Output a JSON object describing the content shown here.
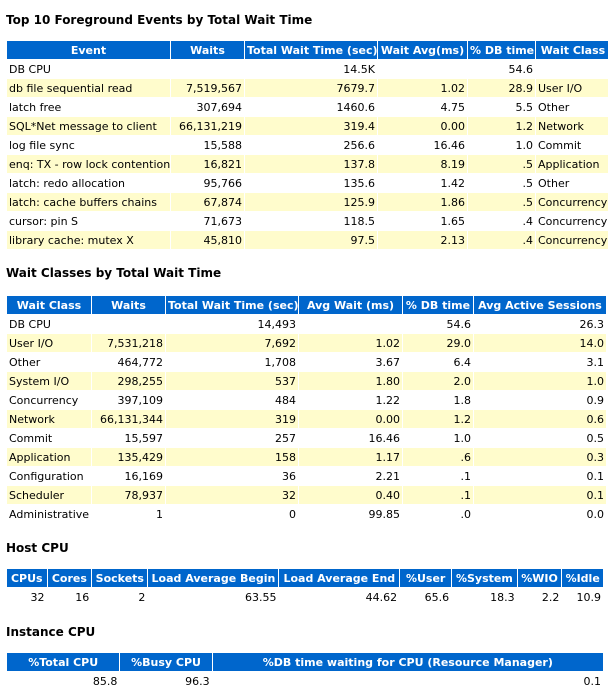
{
  "top_events": {
    "title": "Top 10 Foreground Events by Total Wait Time",
    "headers": [
      "Event",
      "Waits",
      "Total Wait Time (sec)",
      "Wait Avg(ms)",
      "% DB time",
      "Wait Class"
    ],
    "rows": [
      [
        "DB CPU",
        "",
        "14.5K",
        "",
        "54.6",
        ""
      ],
      [
        "db file sequential read",
        "7,519,567",
        "7679.7",
        "1.02",
        "28.9",
        "User I/O"
      ],
      [
        "latch free",
        "307,694",
        "1460.6",
        "4.75",
        "5.5",
        "Other"
      ],
      [
        "SQL*Net message to client",
        "66,131,219",
        "319.4",
        "0.00",
        "1.2",
        "Network"
      ],
      [
        "log file sync",
        "15,588",
        "256.6",
        "16.46",
        "1.0",
        "Commit"
      ],
      [
        "enq: TX - row lock contention",
        "16,821",
        "137.8",
        "8.19",
        ".5",
        "Application"
      ],
      [
        "latch: redo allocation",
        "95,766",
        "135.6",
        "1.42",
        ".5",
        "Other"
      ],
      [
        "latch: cache buffers chains",
        "67,874",
        "125.9",
        "1.86",
        ".5",
        "Concurrency"
      ],
      [
        "cursor: pin S",
        "71,673",
        "118.5",
        "1.65",
        ".4",
        "Concurrency"
      ],
      [
        "library cache: mutex X",
        "45,810",
        "97.5",
        "2.13",
        ".4",
        "Concurrency"
      ]
    ]
  },
  "wait_classes": {
    "title": "Wait Classes by Total Wait Time",
    "headers": [
      "Wait Class",
      "Waits",
      "Total Wait Time (sec)",
      "Avg Wait (ms)",
      "% DB time",
      "Avg Active Sessions"
    ],
    "rows": [
      [
        "DB CPU",
        "",
        "14,493",
        "",
        "54.6",
        "26.3"
      ],
      [
        "User I/O",
        "7,531,218",
        "7,692",
        "1.02",
        "29.0",
        "14.0"
      ],
      [
        "Other",
        "464,772",
        "1,708",
        "3.67",
        "6.4",
        "3.1"
      ],
      [
        "System I/O",
        "298,255",
        "537",
        "1.80",
        "2.0",
        "1.0"
      ],
      [
        "Concurrency",
        "397,109",
        "484",
        "1.22",
        "1.8",
        "0.9"
      ],
      [
        "Network",
        "66,131,344",
        "319",
        "0.00",
        "1.2",
        "0.6"
      ],
      [
        "Commit",
        "15,597",
        "257",
        "16.46",
        "1.0",
        "0.5"
      ],
      [
        "Application",
        "135,429",
        "158",
        "1.17",
        ".6",
        "0.3"
      ],
      [
        "Configuration",
        "16,169",
        "36",
        "2.21",
        ".1",
        "0.1"
      ],
      [
        "Scheduler",
        "78,937",
        "32",
        "0.40",
        ".1",
        "0.1"
      ],
      [
        "Administrative",
        "1",
        "0",
        "99.85",
        ".0",
        "0.0"
      ]
    ]
  },
  "host_cpu": {
    "title": "Host CPU",
    "headers": [
      "CPUs",
      "Cores",
      "Sockets",
      "Load Average Begin",
      "Load Average End",
      "%User",
      "%System",
      "%WIO",
      "%Idle"
    ],
    "rows": [
      [
        "32",
        "16",
        "2",
        "63.55",
        "44.62",
        "65.6",
        "18.3",
        "2.2",
        "10.9"
      ]
    ]
  },
  "instance_cpu": {
    "title": "Instance CPU",
    "headers": [
      "%Total CPU",
      "%Busy CPU",
      "%DB time waiting for CPU (Resource Manager)"
    ],
    "rows": [
      [
        "85.8",
        "96.3",
        "0.1"
      ]
    ]
  }
}
